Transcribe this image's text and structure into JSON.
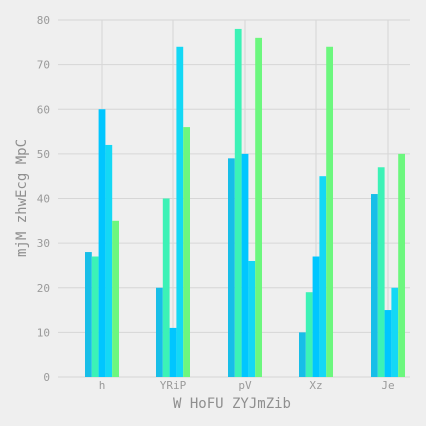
{
  "chart_data": {
    "type": "bar",
    "title": "",
    "xlabel": "W HoFU ZYJmZib",
    "ylabel": "mjM zhwEcg MpC",
    "categories": [
      "h",
      "YRiP",
      "pV",
      "Xz",
      "Je"
    ],
    "series": [
      {
        "values": [
          28,
          20,
          49,
          10,
          41
        ]
      },
      {
        "values": [
          27,
          40,
          78,
          19,
          47
        ]
      },
      {
        "values": [
          60,
          11,
          50,
          27,
          15
        ]
      },
      {
        "values": [
          52,
          74,
          26,
          45,
          20
        ]
      },
      {
        "values": [
          35,
          56,
          76,
          74,
          50
        ]
      }
    ],
    "ylim": [
      0,
      80
    ],
    "yticks": [
      0,
      10,
      20,
      30,
      40,
      50,
      60,
      70,
      80
    ],
    "grid": true,
    "colors": [
      "#17bee8",
      "#3cf2b6",
      "#00c6ff",
      "#14d8f5",
      "#6cf77e"
    ],
    "background": "#efefef"
  }
}
